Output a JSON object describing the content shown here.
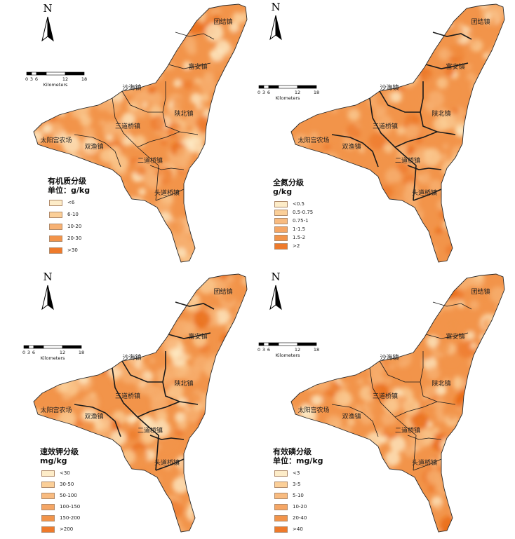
{
  "colors": [
    "#fdecc8",
    "#fbcf98",
    "#f7b173",
    "#f2944a",
    "#ee7a2b",
    "#e8670f"
  ],
  "scale": {
    "ticks": [
      "0",
      "3",
      "6",
      "12",
      "18"
    ],
    "unit": "Kilometers"
  },
  "north": "N",
  "towns": {
    "tuanjie": "团结镇",
    "fuan": "富安镇",
    "shahai": "沙海镇",
    "shaanbei": "陕北镇",
    "sanfeng": "三道桥镇",
    "taiyang": "太阳宫农场",
    "shuangyu": "双渔镇",
    "erdao": "二道桥镇",
    "toudao": "头道桥镇"
  },
  "panels": [
    {
      "id": "som",
      "legend_title": [
        "有机质分级",
        "单位：g/kg"
      ],
      "legend": [
        "<6",
        "6-10",
        "10-20",
        "20-30",
        ">30"
      ],
      "swatch_colors": [
        "#fdecc8",
        "#fbcf98",
        "#f7b173",
        "#f2944a",
        "#ee7a2b"
      ]
    },
    {
      "id": "tn",
      "legend_title": [
        "全氮分级",
        "g/kg"
      ],
      "legend": [
        "<0.5",
        "0.5-0.75",
        "0.75-1",
        "1-1.5",
        "1.5-2",
        ">2"
      ],
      "swatch_colors": [
        "#fdecc8",
        "#fbcf98",
        "#f8bb80",
        "#f5a665",
        "#f2944a",
        "#ee7a2b"
      ]
    },
    {
      "id": "ak",
      "legend_title": [
        "速效钾分级",
        "mg/kg"
      ],
      "legend": [
        "<30",
        "30-50",
        "50-100",
        "100-150",
        "150-200",
        ">200"
      ],
      "swatch_colors": [
        "#fdecc8",
        "#fbcf98",
        "#f8bb80",
        "#f5a665",
        "#f2944a",
        "#ee7a2b"
      ]
    },
    {
      "id": "ap",
      "legend_title": [
        "有效磷分级",
        "单位：mg/kg"
      ],
      "legend": [
        "<3",
        "3-5",
        "5-10",
        "10-20",
        "20-40",
        ">40"
      ],
      "swatch_colors": [
        "#fdecc8",
        "#fbcf98",
        "#f8bb80",
        "#f5a665",
        "#f2944a",
        "#ee7a2b"
      ]
    }
  ]
}
